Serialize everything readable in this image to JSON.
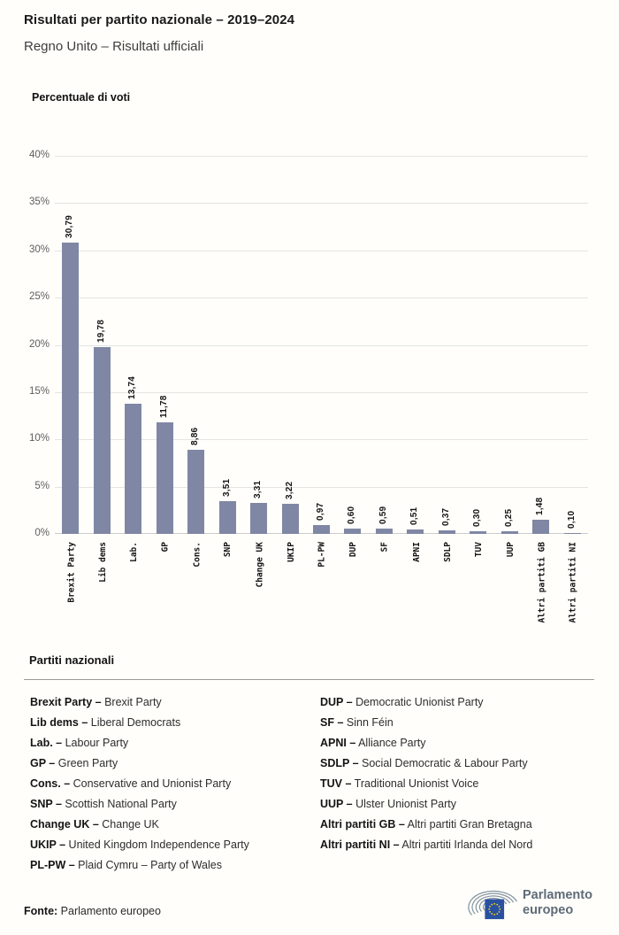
{
  "header": {
    "title": "Risultati per partito nazionale – 2019–2024",
    "subtitle": "Regno Unito – Risultati ufficiali"
  },
  "chart_data": {
    "type": "bar",
    "title": "Percentuale di voti",
    "categories": [
      "Brexit Party",
      "Lib dems",
      "Lab.",
      "GP",
      "Cons.",
      "SNP",
      "Change UK",
      "UKIP",
      "PL-PW",
      "DUP",
      "SF",
      "APNI",
      "SDLP",
      "TUV",
      "UUP",
      "Altri partiti GB",
      "Altri partiti NI"
    ],
    "values": [
      30.79,
      19.78,
      13.74,
      11.78,
      8.86,
      3.51,
      3.31,
      3.22,
      0.97,
      0.6,
      0.59,
      0.51,
      0.37,
      0.3,
      0.25,
      1.48,
      0.1
    ],
    "value_labels": [
      "30,79",
      "19,78",
      "13,74",
      "11,78",
      "8,86",
      "3,51",
      "3,31",
      "3,22",
      "0,97",
      "0,60",
      "0,59",
      "0,51",
      "0,37",
      "0,30",
      "0,25",
      "1,48",
      "0,10"
    ],
    "xlabel": "",
    "ylabel": "Percentuale di voti",
    "ylim": [
      0,
      40
    ],
    "ytick_step": 5,
    "yticks": [
      "0%",
      "5%",
      "10%",
      "15%",
      "20%",
      "25%",
      "30%",
      "35%",
      "40%"
    ],
    "grid": true,
    "bar_color": "#7f87a4"
  },
  "legend": {
    "heading": "Partiti nazionali",
    "columns": [
      [
        {
          "abbr": "Brexit Party –",
          "name": "Brexit Party"
        },
        {
          "abbr": "Lib dems –",
          "name": "Liberal Democrats"
        },
        {
          "abbr": "Lab. –",
          "name": "Labour Party"
        },
        {
          "abbr": "GP –",
          "name": "Green Party"
        },
        {
          "abbr": "Cons. –",
          "name": "Conservative and Unionist Party"
        },
        {
          "abbr": "SNP –",
          "name": "Scottish National Party"
        },
        {
          "abbr": "Change UK –",
          "name": "Change UK"
        },
        {
          "abbr": "UKIP –",
          "name": "United Kingdom Independence Party"
        },
        {
          "abbr": "PL-PW –",
          "name": "Plaid Cymru – Party of Wales"
        }
      ],
      [
        {
          "abbr": "DUP –",
          "name": "Democratic Unionist Party"
        },
        {
          "abbr": "SF –",
          "name": "Sinn Féin"
        },
        {
          "abbr": "APNI –",
          "name": "Alliance Party"
        },
        {
          "abbr": "SDLP –",
          "name": "Social Democratic & Labour Party"
        },
        {
          "abbr": "TUV –",
          "name": "Traditional Unionist Voice"
        },
        {
          "abbr": "UUP –",
          "name": "Ulster Unionist Party"
        },
        {
          "abbr": "Altri partiti GB –",
          "name": "Altri partiti Gran Bretagna"
        },
        {
          "abbr": "Altri partiti NI –",
          "name": "Altri partiti Irlanda del Nord"
        }
      ]
    ]
  },
  "footer": {
    "source_label": "Fonte:",
    "source_name": "Parlamento europeo",
    "logo": {
      "line1": "Parlamento",
      "line2": "europeo"
    }
  },
  "colors": {
    "bar": "#7f87a4",
    "gridline": "#e4e4e2",
    "eu_flag_blue": "#2a51a0",
    "eu_star_yellow": "#ffd617",
    "logo_gray": "#8293a0"
  }
}
